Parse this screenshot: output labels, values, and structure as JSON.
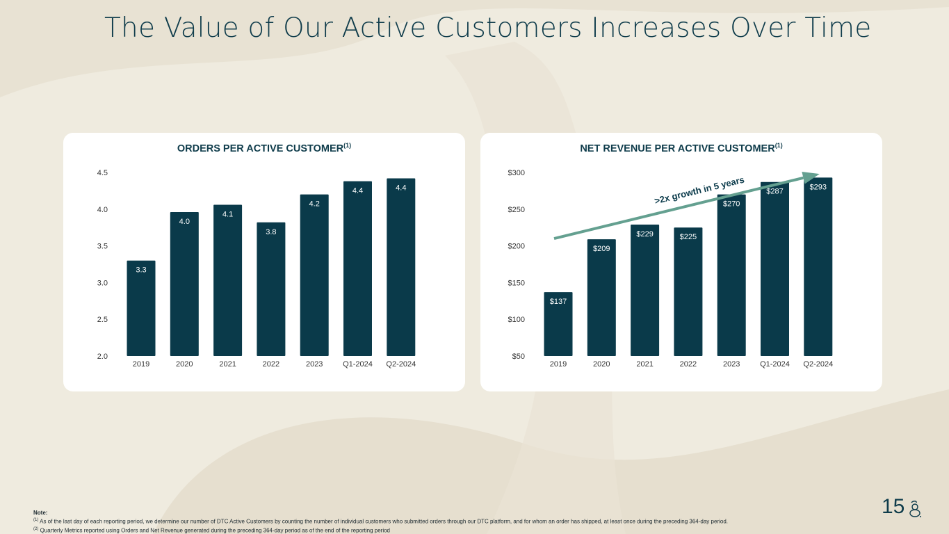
{
  "page": {
    "title": "The Value of Our Active Customers Increases Over Time",
    "page_number": "15"
  },
  "colors": {
    "background": "#efebdf",
    "bar": "#0a3a4a",
    "bar_label": "#ffffff",
    "arrow": "#64a090",
    "title": "#0f3c4b"
  },
  "chart_data": [
    {
      "type": "bar",
      "title": "ORDERS PER ACTIVE CUSTOMER",
      "title_footnote": "(1)",
      "categories": [
        "2019",
        "2020",
        "2021",
        "2022",
        "2023",
        "Q1-2024",
        "Q2-2024"
      ],
      "values": [
        3.3,
        3.96,
        4.06,
        3.82,
        4.2,
        4.38,
        4.42
      ],
      "value_labels": [
        "3.3",
        "4.0",
        "4.1",
        "3.8",
        "4.2",
        "4.4",
        "4.4"
      ],
      "ylim": [
        2.0,
        4.5
      ],
      "yticks": [
        "2.0",
        "2.5",
        "3.0",
        "3.5",
        "4.0",
        "4.5"
      ],
      "ytick_values": [
        2.0,
        2.5,
        3.0,
        3.5,
        4.0,
        4.5
      ],
      "xlabel": "",
      "ylabel": "",
      "grid": false,
      "legend": "none"
    },
    {
      "type": "bar",
      "title": "NET REVENUE PER ACTIVE CUSTOMER",
      "title_footnote": "(1)",
      "categories": [
        "2019",
        "2020",
        "2021",
        "2022",
        "2023",
        "Q1-2024",
        "Q2-2024"
      ],
      "values": [
        137,
        209,
        229,
        225,
        270,
        287,
        293
      ],
      "value_labels": [
        "$137",
        "$209",
        "$229",
        "$225",
        "$270",
        "$287",
        "$293"
      ],
      "ylim": [
        50,
        300
      ],
      "yticks": [
        "$50",
        "$100",
        "$150",
        "$200",
        "$250",
        "$300"
      ],
      "ytick_values": [
        50,
        100,
        150,
        200,
        250,
        300
      ],
      "annotation": ">2x growth in 5 years",
      "arrow": {
        "from_category": "2019",
        "to_category": "Q2-2024",
        "from_value": 210,
        "to_value": 298
      },
      "xlabel": "",
      "ylabel": "",
      "grid": false,
      "legend": "none"
    }
  ],
  "notes": {
    "heading": "Note:",
    "note1_marker": "(1)",
    "note1": "As of the last day of each reporting period, we determine our number of DTC Active Customers by counting the number of individual customers who submitted orders through our DTC platform, and for whom an order has shipped, at least once during the preceding 364-day period.",
    "note2_marker": "(2)",
    "note2": "Quarterly Metrics reported using Orders and Net Revenue generated during the preceding 364-day period as of the end of the reporting period"
  }
}
